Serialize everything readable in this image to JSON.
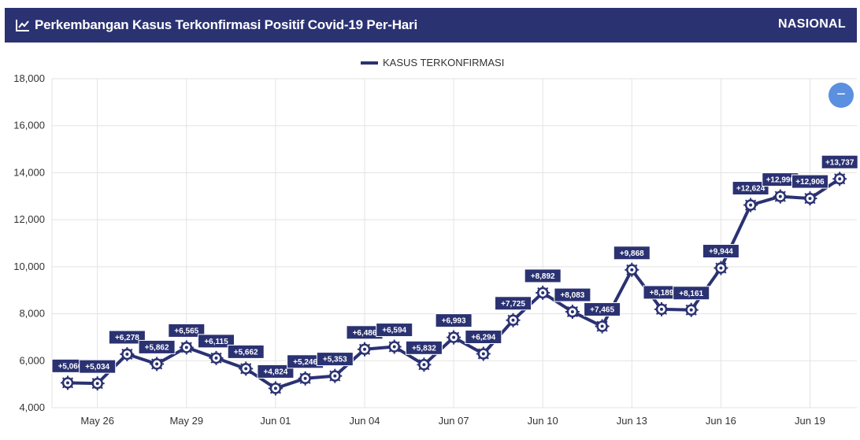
{
  "header": {
    "title": "Perkembangan Kasus Terkonfirmasi Positif Covid-19 Per-Hari",
    "scope": "NASIONAL"
  },
  "legend": {
    "label": "KASUS TERKONFIRMASI"
  },
  "zoom_button": {
    "label": "−"
  },
  "colors": {
    "primary": "#2b3272",
    "zoom": "#5b8fe0",
    "grid": "#e3e3e3"
  },
  "chart_data": {
    "type": "line",
    "title": "Perkembangan Kasus Terkonfirmasi Positif Covid-19 Per-Hari",
    "x": [
      "May 25",
      "May 26",
      "May 27",
      "May 28",
      "May 29",
      "May 30",
      "May 31",
      "Jun 01",
      "Jun 02",
      "Jun 03",
      "Jun 04",
      "Jun 05",
      "Jun 06",
      "Jun 07",
      "Jun 08",
      "Jun 09",
      "Jun 10",
      "Jun 11",
      "Jun 12",
      "Jun 13",
      "Jun 14",
      "Jun 15",
      "Jun 16",
      "Jun 17",
      "Jun 18",
      "Jun 19",
      "Jun 20"
    ],
    "x_tick_labels": [
      "May 26",
      "May 29",
      "Jun 01",
      "Jun 04",
      "Jun 07",
      "Jun 10",
      "Jun 13",
      "Jun 16",
      "Jun 19"
    ],
    "series": [
      {
        "name": "KASUS TERKONFIRMASI",
        "values": [
          5060,
          5034,
          6278,
          5862,
          6565,
          6115,
          5662,
          4824,
          5246,
          5353,
          6486,
          6594,
          5832,
          6993,
          6294,
          7725,
          8892,
          8083,
          7465,
          9868,
          8189,
          8161,
          9944,
          12624,
          12990,
          12906,
          13737
        ],
        "labels": [
          "+5,060",
          "+5,034",
          "+6,278",
          "+5,862",
          "+6,565",
          "+6,115",
          "+5,662",
          "+4,824",
          "+5,246",
          "+5,353",
          "+6,486",
          "+6,594",
          "+5,832",
          "+6,993",
          "+6,294",
          "+7,725",
          "+8,892",
          "+8,083",
          "+7,465",
          "+9,868",
          "+8,189",
          "+8,161",
          "+9,944",
          "+12,624",
          "+12,990",
          "+12,906",
          "+13,737"
        ]
      }
    ],
    "y_ticks": [
      4000,
      6000,
      8000,
      10000,
      12000,
      14000,
      16000,
      18000
    ],
    "y_tick_labels": [
      "4,000",
      "6,000",
      "8,000",
      "10,000",
      "12,000",
      "14,000",
      "16,000",
      "18,000"
    ],
    "ylim": [
      4000,
      18000
    ],
    "grid": true,
    "legend_position": "top-center"
  }
}
